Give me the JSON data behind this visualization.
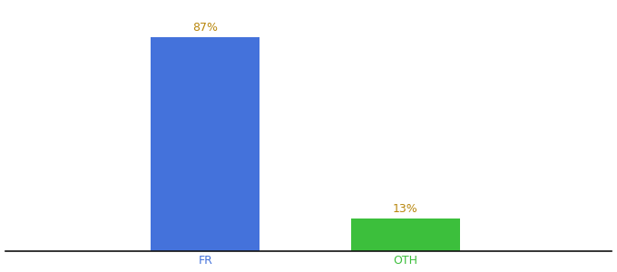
{
  "categories": [
    "FR",
    "OTH"
  ],
  "values": [
    87,
    13
  ],
  "bar_colors": [
    "#4472db",
    "#3cbf3c"
  ],
  "label_texts": [
    "87%",
    "13%"
  ],
  "tick_colors": [
    "#4472db",
    "#3cbf3c"
  ],
  "background_color": "#ffffff",
  "label_color": "#b8860b",
  "ylim": [
    0,
    100
  ],
  "bar_width": 0.18,
  "label_fontsize": 9,
  "tick_fontsize": 9
}
